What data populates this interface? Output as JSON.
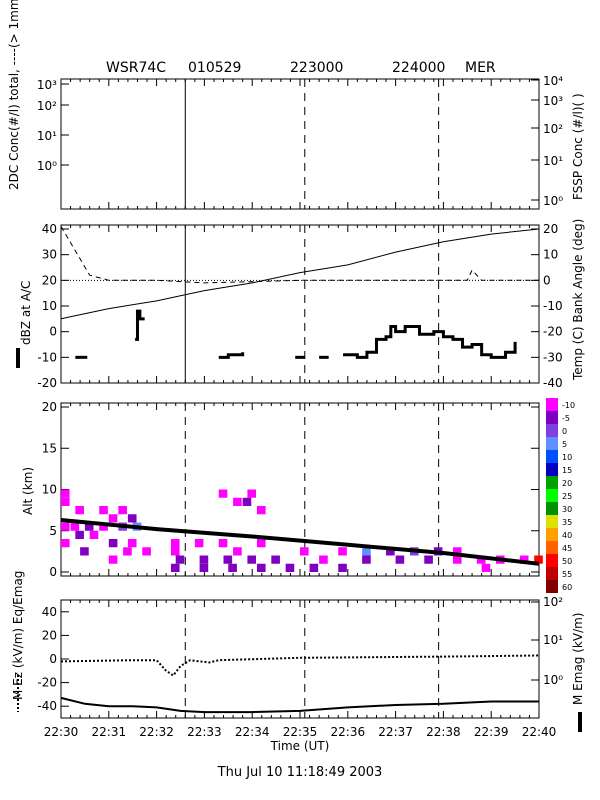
{
  "header": {
    "flight": "WSR74C",
    "date_code": "010529",
    "time_mark_1": "223000",
    "time_mark_2": "224000",
    "region": "MER"
  },
  "footer": {
    "timestamp": "Thu Jul 10 11:18:49 2003"
  },
  "x_axis": {
    "label": "Time (UT)",
    "ticks": [
      "22:30",
      "22:31",
      "22:32",
      "22:33",
      "22:34",
      "22:35",
      "22:36",
      "22:37",
      "22:38",
      "22:39",
      "22:40"
    ],
    "range_minutes": [
      0,
      10
    ],
    "vertical_markers_minutes": [
      2.6,
      5.1,
      7.9
    ]
  },
  "chart_data": [
    {
      "type": "line",
      "title": "",
      "ylabel_left": "2DC Conc(#/l) total, ----(> 1mm)",
      "ylabel_right": "FSSP Conc (#/l)( )",
      "left_ticks": [
        "10⁰",
        "10¹",
        "10²",
        "10³"
      ],
      "right_ticks": [
        "10⁰",
        "10¹",
        "10²",
        "10³",
        "10⁴"
      ],
      "left_scale": "log",
      "right_scale": "log",
      "series": []
    },
    {
      "type": "line",
      "ylabel_left": "dBZ at A/C",
      "ylabel_right": "Temp (C) Bank Angle (deg)",
      "ylim_left": [
        -20,
        40
      ],
      "ylim_right": [
        -40,
        20
      ],
      "left_ticks": [
        "-20",
        "-10",
        "0",
        "10",
        "20",
        "30",
        "40"
      ],
      "right_ticks": [
        "-40",
        "-30",
        "-20",
        "-10",
        "0",
        "10",
        "20"
      ],
      "temp_c": [
        [
          0,
          -15
        ],
        [
          1,
          -11
        ],
        [
          2,
          -8
        ],
        [
          3,
          -4
        ],
        [
          4,
          -1
        ],
        [
          5,
          3
        ],
        [
          6,
          6
        ],
        [
          7,
          11
        ],
        [
          8,
          15
        ],
        [
          9,
          18
        ],
        [
          10,
          20
        ]
      ],
      "bank_angle_deg": [
        [
          0,
          21
        ],
        [
          0.6,
          2
        ],
        [
          1,
          0
        ],
        [
          2,
          0
        ],
        [
          3,
          -1
        ],
        [
          5,
          0
        ],
        [
          8.5,
          0
        ],
        [
          8.6,
          4
        ],
        [
          8.8,
          0
        ],
        [
          10,
          0
        ]
      ],
      "dbz_segments": [
        {
          "x": [
            0.3,
            0.55
          ],
          "y": [
            -10,
            -10
          ]
        },
        {
          "x": [
            1.55,
            1.6,
            1.65,
            1.75
          ],
          "y": [
            -3,
            8,
            5,
            5
          ]
        },
        {
          "x": [
            3.3,
            3.5,
            3.8
          ],
          "y": [
            -10,
            -9,
            -8
          ]
        },
        {
          "x": [
            4.9,
            5.1
          ],
          "y": [
            -10,
            -10
          ]
        },
        {
          "x": [
            5.4,
            5.6
          ],
          "y": [
            -10,
            -10
          ]
        },
        {
          "x": [
            5.9,
            6.2,
            6.4,
            6.6,
            6.8,
            6.9,
            7.0,
            7.2,
            7.5,
            7.8,
            8.0,
            8.2,
            8.4,
            8.6,
            8.8,
            9.0,
            9.3,
            9.5
          ],
          "y": [
            -9,
            -10,
            -8,
            -3,
            -2,
            2,
            0,
            2,
            -1,
            0,
            -2,
            -3,
            -6,
            -5,
            -9,
            -10,
            -8,
            -4
          ]
        }
      ]
    },
    {
      "type": "heatmap",
      "ylabel": "Alt (km)",
      "ylim": [
        0,
        20
      ],
      "y_ticks": [
        "0",
        "5",
        "10",
        "15",
        "20"
      ],
      "colorbar_label": "",
      "colorbar_levels": [
        "-10",
        "-5",
        "0",
        "5",
        "10",
        "15",
        "20",
        "25",
        "30",
        "35",
        "40",
        "45",
        "50",
        "55",
        "60"
      ],
      "colorbar_colors": [
        "#ff00ff",
        "#8000c0",
        "#8040e0",
        "#6090ff",
        "#0050ff",
        "#0000c0",
        "#00a000",
        "#00ff00",
        "#009000",
        "#e0e000",
        "#ffa000",
        "#ff6000",
        "#ff0000",
        "#c00000",
        "#800000"
      ],
      "flight_altitude_km": [
        [
          0,
          6.3
        ],
        [
          2,
          5.2
        ],
        [
          4,
          4.3
        ],
        [
          6,
          3.3
        ],
        [
          8,
          2.3
        ],
        [
          10,
          1.0
        ]
      ],
      "cells": [
        [
          0,
          9,
          10,
          0
        ],
        [
          0,
          8,
          9,
          0
        ],
        [
          0.3,
          7,
          8,
          0
        ],
        [
          0.8,
          7,
          8,
          0
        ],
        [
          1.2,
          7,
          8,
          0
        ],
        [
          1.0,
          6,
          7,
          0
        ],
        [
          1.4,
          6,
          7,
          1
        ],
        [
          0,
          5,
          6,
          0
        ],
        [
          0.2,
          5,
          6,
          0
        ],
        [
          0.5,
          5,
          6,
          1
        ],
        [
          0.8,
          5,
          6,
          0
        ],
        [
          1.2,
          5,
          6,
          2
        ],
        [
          1.5,
          5,
          6,
          3
        ],
        [
          0,
          3,
          4,
          0
        ],
        [
          0.3,
          4,
          5,
          1
        ],
        [
          0.6,
          4,
          5,
          0
        ],
        [
          1.0,
          3,
          4,
          1
        ],
        [
          1.4,
          3,
          4,
          0
        ],
        [
          1.7,
          2,
          3,
          0
        ],
        [
          0.4,
          2,
          3,
          1
        ],
        [
          1.0,
          1,
          2,
          0
        ],
        [
          1.3,
          2,
          3,
          0
        ],
        [
          2.3,
          2,
          4,
          0
        ],
        [
          2.8,
          3,
          4,
          0
        ],
        [
          3.3,
          3,
          4,
          0
        ],
        [
          3.6,
          2,
          3,
          0
        ],
        [
          4.1,
          3,
          4,
          0
        ],
        [
          2.4,
          1,
          2,
          1
        ],
        [
          2.9,
          1,
          2,
          1
        ],
        [
          3.4,
          1,
          2,
          1
        ],
        [
          3.9,
          1,
          2,
          1
        ],
        [
          4.4,
          1,
          2,
          1
        ],
        [
          2.3,
          0,
          1,
          1
        ],
        [
          2.9,
          0,
          1,
          1
        ],
        [
          3.5,
          0,
          1,
          1
        ],
        [
          4.1,
          0,
          1,
          1
        ],
        [
          4.7,
          0,
          1,
          1
        ],
        [
          3.3,
          9,
          10,
          0
        ],
        [
          3.6,
          8,
          9,
          0
        ],
        [
          3.9,
          9,
          10,
          0
        ],
        [
          3.8,
          8,
          9,
          1
        ],
        [
          4.1,
          7,
          8,
          0
        ],
        [
          5.0,
          2,
          3,
          0
        ],
        [
          5.4,
          1,
          2,
          0
        ],
        [
          5.8,
          2,
          3,
          0
        ],
        [
          6.3,
          2,
          3,
          3
        ],
        [
          6.8,
          2,
          3,
          1
        ],
        [
          7.3,
          2,
          3,
          2
        ],
        [
          7.8,
          2,
          3,
          1
        ],
        [
          8.2,
          2,
          3,
          0
        ],
        [
          8.7,
          1,
          2,
          0
        ],
        [
          9.1,
          1,
          2,
          0
        ],
        [
          9.6,
          1,
          2,
          0
        ],
        [
          9.9,
          1,
          2,
          12
        ],
        [
          5.2,
          0,
          1,
          1
        ],
        [
          5.8,
          0,
          1,
          1
        ],
        [
          6.3,
          1,
          2,
          1
        ],
        [
          7.0,
          1,
          2,
          1
        ],
        [
          7.6,
          1,
          2,
          1
        ],
        [
          8.2,
          1,
          2,
          0
        ],
        [
          8.8,
          0,
          1,
          0
        ]
      ]
    },
    {
      "type": "line",
      "ylabel_left": "M Ez (kV/m) Eq/Emag",
      "ylabel_right": "M Emag (kV/m)",
      "ylim_left": [
        -50,
        50
      ],
      "left_ticks": [
        "-40",
        "-20",
        "0",
        "20",
        "40"
      ],
      "right_ticks": [
        "10⁰",
        "10¹",
        "10²"
      ],
      "right_scale": "log",
      "ez_kv_m": [
        [
          0,
          -2
        ],
        [
          1.5,
          -1
        ],
        [
          2,
          -1
        ],
        [
          2.2,
          -10
        ],
        [
          2.35,
          -14
        ],
        [
          2.5,
          -6
        ],
        [
          2.7,
          -1
        ],
        [
          3.1,
          -3
        ],
        [
          3.3,
          -1
        ],
        [
          5,
          1
        ],
        [
          8,
          2
        ],
        [
          10,
          3
        ]
      ],
      "emag_series": [
        [
          0,
          -33
        ],
        [
          0.5,
          -38
        ],
        [
          1,
          -40
        ],
        [
          1.5,
          -40
        ],
        [
          2,
          -41
        ],
        [
          2.5,
          -44
        ],
        [
          3,
          -45
        ],
        [
          4,
          -45
        ],
        [
          5,
          -44
        ],
        [
          6,
          -41
        ],
        [
          7,
          -39
        ],
        [
          8,
          -38
        ],
        [
          9,
          -36
        ],
        [
          10,
          -36
        ]
      ]
    }
  ]
}
